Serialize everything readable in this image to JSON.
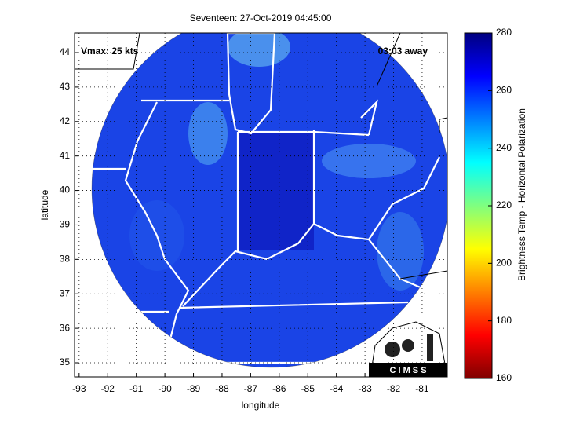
{
  "chart_data": {
    "type": "map",
    "title": "Seventeen: 27-Oct-2019 04:45:00",
    "xlabel": "longitude",
    "ylabel": "latitude",
    "xlim": [
      -93.16,
      -80.12
    ],
    "ylim": [
      34.59,
      44.57
    ],
    "xticks": [
      -93,
      -92,
      -91,
      -90,
      -89,
      -88,
      -87,
      -86,
      -85,
      -84,
      -83,
      -82,
      -81
    ],
    "yticks": [
      35,
      36,
      37,
      38,
      39,
      40,
      41,
      42,
      43,
      44
    ],
    "grid": true,
    "annotations": [
      "Vmax: 25 kts",
      "03:03 away"
    ],
    "logo": "C I M S S",
    "colorbar": {
      "label": "Brightness Temp - Horizontal Polarization",
      "lim": [
        160,
        280
      ],
      "ticks": [
        160,
        180,
        200,
        220,
        240,
        260,
        280
      ]
    }
  }
}
